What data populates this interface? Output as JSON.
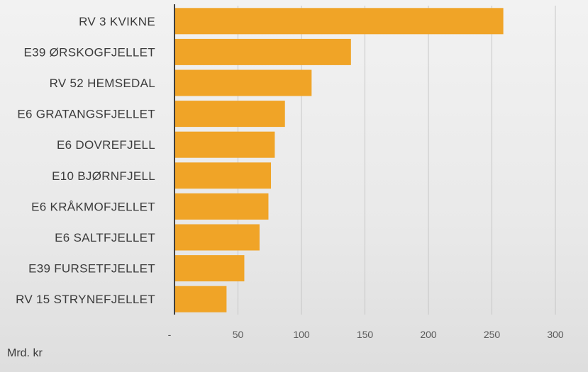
{
  "chart_data": {
    "type": "bar",
    "orientation": "horizontal",
    "categories": [
      "RV 3 KVIKNE",
      "E39 ØRSKOGFJELLET",
      "RV 52 HEMSEDAL",
      "E6 GRATANGSFJELLET",
      "E6 DOVREFJELL",
      "E10 BJØRNFJELL",
      "E6 KRÅKMOFJELLET",
      "E6 SALTFJELLET",
      "E39 FURSETFJELLET",
      "RV 15 STRYNEFJELLET"
    ],
    "values": [
      259,
      139,
      108,
      87,
      79,
      76,
      74,
      67,
      55,
      41
    ],
    "xlim": [
      0,
      300
    ],
    "xticks": [
      0,
      50,
      100,
      150,
      200,
      250,
      300
    ],
    "xtick_labels": [
      "-",
      "50",
      "100",
      "150",
      "200",
      "250",
      "300"
    ],
    "unit_label": "Mrd. kr",
    "grid": "vertical",
    "legend": "none",
    "bar_color": "#f0a427",
    "axis_color": "#404040",
    "grid_color": "#c6c6c6"
  }
}
